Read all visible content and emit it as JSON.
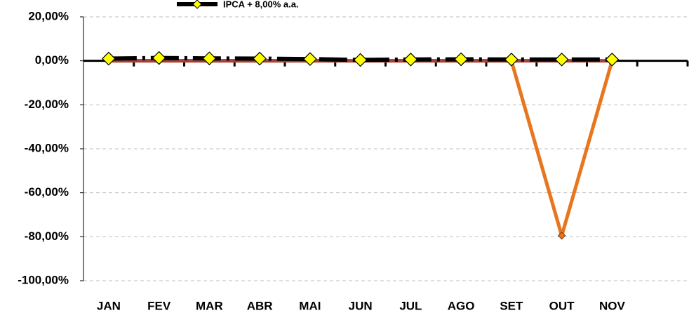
{
  "chart_data": {
    "type": "line",
    "categories": [
      "JAN",
      "FEV",
      "MAR",
      "ABR",
      "MAI",
      "JUN",
      "JUL",
      "AGO",
      "SET",
      "OUT",
      "NOV",
      null
    ],
    "series": [
      {
        "color": "#e8761e",
        "marker": "small-diamond",
        "values": [
          0,
          0,
          0,
          0,
          0,
          0,
          0,
          0,
          0,
          -79.5,
          0,
          null
        ]
      },
      {
        "color": "#a5423a",
        "marker": "none",
        "values": [
          0,
          0,
          0,
          0,
          0,
          0,
          0,
          0,
          0,
          0,
          0,
          null
        ]
      },
      {
        "name": "IPCA + 8,00% a.a.",
        "color": "#000000",
        "marker_color": "#ffff00",
        "marker": "diamond",
        "values": [
          1.0,
          1.3,
          1.1,
          1.0,
          0.8,
          0.4,
          0.6,
          0.7,
          0.6,
          0.6,
          0.6,
          null
        ]
      }
    ],
    "ylim": [
      -100,
      20
    ],
    "yticks": [
      {
        "value": -100,
        "label": "-100,00%"
      },
      {
        "value": -80,
        "label": "-80,00%"
      },
      {
        "value": -60,
        "label": "-60,00%"
      },
      {
        "value": -40,
        "label": "-40,00%"
      },
      {
        "value": -20,
        "label": "-20,00%"
      },
      {
        "value": 0,
        "label": "0,00%"
      },
      {
        "value": 20,
        "label": "20,00%"
      }
    ],
    "grid": true,
    "legend": "top"
  }
}
